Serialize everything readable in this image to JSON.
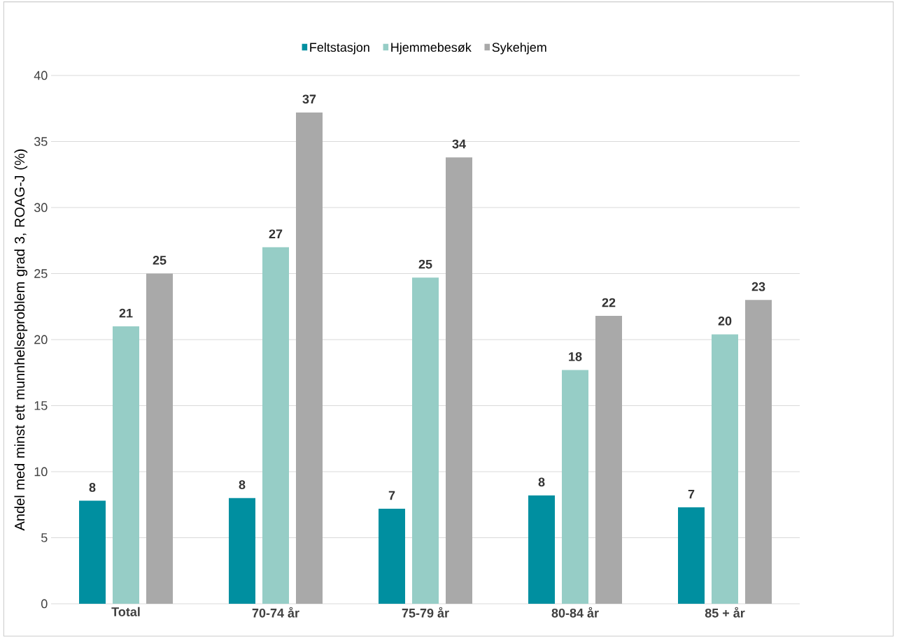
{
  "chart_data": {
    "type": "bar",
    "ylabel": "Andel med minst ett munnhelseproblem grad 3, ROAG-J (%)",
    "categories": [
      "Total",
      "70-74 år",
      "75-79 år",
      "80-84 år",
      "85 + år"
    ],
    "series": [
      {
        "name": "Feltstasjon",
        "color": "#008fa0",
        "values": [
          7.8,
          8.0,
          7.2,
          8.2,
          7.3
        ],
        "value_labels": [
          "8",
          "8",
          "7",
          "8",
          "7"
        ]
      },
      {
        "name": "Hjemmebesøk",
        "color": "#96cdc6",
        "values": [
          21.0,
          27.0,
          24.7,
          17.7,
          20.4
        ],
        "value_labels": [
          "21",
          "27",
          "25",
          "18",
          "20"
        ]
      },
      {
        "name": "Sykehjem",
        "color": "#a9a9a9",
        "values": [
          25.0,
          37.2,
          33.8,
          21.8,
          23.0
        ],
        "value_labels": [
          "25",
          "37",
          "34",
          "22",
          "23"
        ]
      }
    ],
    "ylim": [
      0,
      40
    ],
    "yticks": [
      0,
      5,
      10,
      15,
      20,
      25,
      30,
      35,
      40
    ],
    "grid": "y",
    "legend": "top"
  }
}
